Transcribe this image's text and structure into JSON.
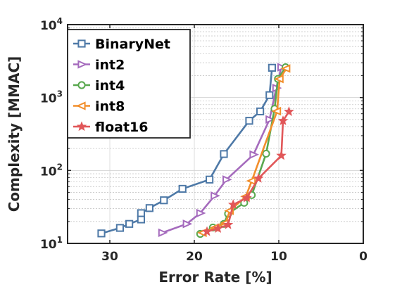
{
  "chart_data": {
    "type": "line",
    "title": "",
    "xlabel": "Error Rate [%]",
    "ylabel": "Complexity [MMAC]",
    "x_reversed": true,
    "y_scale": "log",
    "xlim": [
      35,
      0
    ],
    "ylim": [
      10,
      10000
    ],
    "xticks": [
      {
        "value": 30,
        "label": "30"
      },
      {
        "value": 20,
        "label": "20"
      },
      {
        "value": 10,
        "label": "10"
      },
      {
        "value": 0,
        "label": "0"
      }
    ],
    "yticks": [
      {
        "value": 10,
        "base": "10",
        "exp": "1"
      },
      {
        "value": 100,
        "base": "10",
        "exp": "2"
      },
      {
        "value": 1000,
        "base": "10",
        "exp": "3"
      },
      {
        "value": 10000,
        "base": "10",
        "exp": "4"
      }
    ],
    "grid": true,
    "legend_position": "top-left",
    "series": [
      {
        "name": "BinaryNet",
        "color": "#4e79a7",
        "marker": "square",
        "x": [
          31.0,
          28.8,
          27.7,
          26.3,
          26.3,
          25.3,
          23.6,
          21.4,
          18.2,
          16.5,
          13.5,
          12.2,
          11.1,
          10.8
        ],
        "y": [
          13.7,
          16.3,
          18.5,
          21.3,
          26.0,
          30.5,
          39.0,
          56.0,
          75.0,
          168.0,
          480.0,
          645.0,
          1080.0,
          2560.0
        ]
      },
      {
        "name": "int2",
        "color": "#a56bbd",
        "marker": "triangle-right",
        "x": [
          23.8,
          20.9,
          19.3,
          17.6,
          16.2,
          13.0,
          11.1,
          10.3,
          9.7
        ],
        "y": [
          14.0,
          18.5,
          26.0,
          45.0,
          75.0,
          165.0,
          500.0,
          1350.0,
          2600.0
        ]
      },
      {
        "name": "int4",
        "color": "#59a84f",
        "marker": "circle",
        "x": [
          19.3,
          17.8,
          16.5,
          16.0,
          14.1,
          13.2,
          11.5,
          10.5,
          10.1,
          9.2
        ],
        "y": [
          13.5,
          16.5,
          18.5,
          25.5,
          36.0,
          46.0,
          170.0,
          700.0,
          1800.0,
          2600.0
        ]
      },
      {
        "name": "int8",
        "color": "#f28e2b",
        "marker": "triangle-left",
        "x": [
          19.0,
          17.5,
          16.3,
          15.8,
          13.9,
          13.2,
          10.2,
          9.9,
          9.1
        ],
        "y": [
          14.0,
          16.5,
          19.0,
          28.0,
          44.0,
          72.0,
          650.0,
          1800.0,
          2500.0
        ]
      },
      {
        "name": "float16",
        "color": "#e15759",
        "marker": "star",
        "x": [
          18.5,
          17.2,
          16.0,
          15.4,
          13.8,
          12.4,
          9.7,
          9.5,
          8.8
        ],
        "y": [
          14.5,
          16.0,
          18.0,
          34.0,
          42.0,
          78.0,
          160.0,
          480.0,
          640.0
        ]
      }
    ]
  }
}
